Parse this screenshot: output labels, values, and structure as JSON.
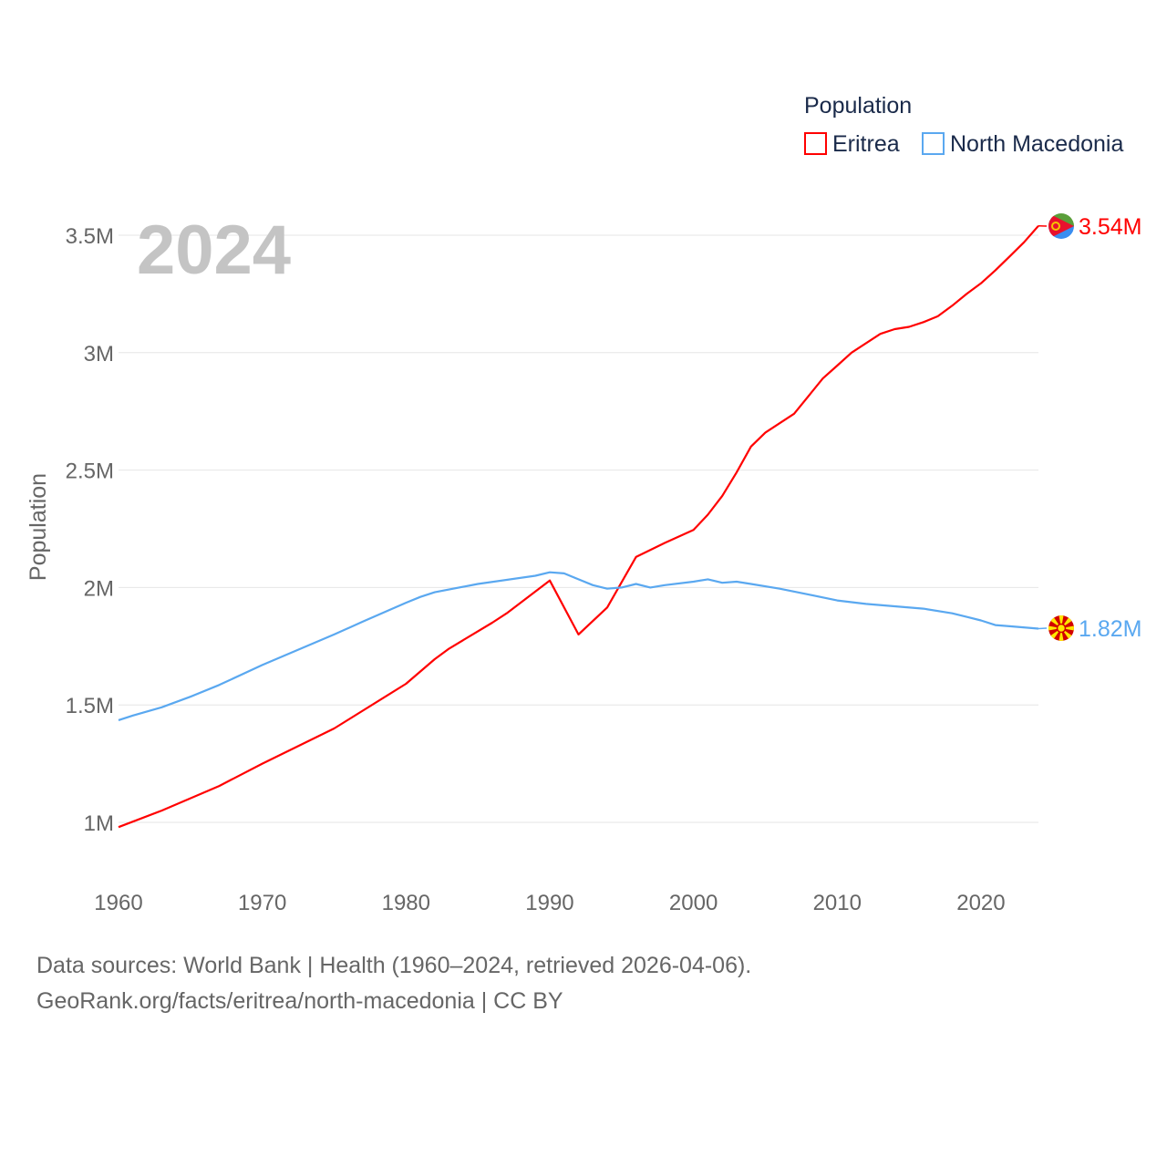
{
  "chart_data": {
    "type": "line",
    "title": "",
    "year_watermark": "2024",
    "xlabel": "",
    "ylabel": "Population",
    "xlim": [
      1960,
      2024
    ],
    "ylim": [
      0.75,
      3.75
    ],
    "x_ticks": [
      "1960",
      "1970",
      "1980",
      "1990",
      "2000",
      "2010",
      "2020"
    ],
    "y_ticks": [
      {
        "v": 1,
        "label": "1M"
      },
      {
        "v": 1.5,
        "label": "1.5M"
      },
      {
        "v": 2,
        "label": "2M"
      },
      {
        "v": 2.5,
        "label": "2.5M"
      },
      {
        "v": 3,
        "label": "3M"
      },
      {
        "v": 3.5,
        "label": "3.5M"
      }
    ],
    "grid": true,
    "legend": {
      "title": "Population",
      "placement": "top-right"
    },
    "series": [
      {
        "name": "Eritrea",
        "color": "#ff0000",
        "end_label": "3.54M",
        "flag": "eritrea-flag-icon",
        "x": [
          1960,
          1963,
          1967,
          1970,
          1975,
          1980,
          1982,
          1983,
          1986,
          1987,
          1990,
          1992,
          1994,
          1996,
          1998,
          2000,
          2001,
          2002,
          2003,
          2004,
          2005,
          2007,
          2009,
          2010,
          2011,
          2013,
          2014,
          2015,
          2016,
          2017,
          2018,
          2019,
          2020,
          2021,
          2022,
          2023,
          2024
        ],
        "values": [
          0.98,
          1.05,
          1.155,
          1.25,
          1.4,
          1.59,
          1.695,
          1.74,
          1.85,
          1.89,
          2.03,
          1.8,
          1.915,
          2.13,
          2.19,
          2.245,
          2.31,
          2.39,
          2.49,
          2.6,
          2.66,
          2.74,
          2.89,
          2.945,
          3.0,
          3.08,
          3.1,
          3.11,
          3.13,
          3.155,
          3.2,
          3.25,
          3.295,
          3.35,
          3.41,
          3.47,
          3.54
        ]
      },
      {
        "name": "North Macedonia",
        "color": "#5aa8f0",
        "end_label": "1.82M",
        "flag": "north-macedonia-flag-icon",
        "x": [
          1960,
          1961,
          1963,
          1965,
          1967,
          1970,
          1975,
          1977,
          1980,
          1981,
          1982,
          1985,
          1989,
          1990,
          1991,
          1992,
          1993,
          1994,
          1995,
          1996,
          1997,
          1998,
          2000,
          2001,
          2002,
          2003,
          2004,
          2006,
          2008,
          2010,
          2012,
          2014,
          2016,
          2018,
          2019,
          2020,
          2021,
          2022,
          2024
        ],
        "values": [
          1.435,
          1.455,
          1.49,
          1.535,
          1.585,
          1.67,
          1.8,
          1.855,
          1.935,
          1.96,
          1.98,
          2.015,
          2.05,
          2.065,
          2.06,
          2.035,
          2.01,
          1.995,
          2.0,
          2.015,
          2.0,
          2.01,
          2.025,
          2.035,
          2.02,
          2.025,
          2.015,
          1.995,
          1.97,
          1.945,
          1.93,
          1.92,
          1.91,
          1.89,
          1.875,
          1.86,
          1.84,
          1.835,
          1.825
        ]
      }
    ]
  },
  "footer": {
    "line1": "Data sources: World Bank | Health (1960–2024, retrieved 2026-04-06).",
    "line2": "GeoRank.org/facts/eritrea/north-macedonia | CC BY"
  }
}
